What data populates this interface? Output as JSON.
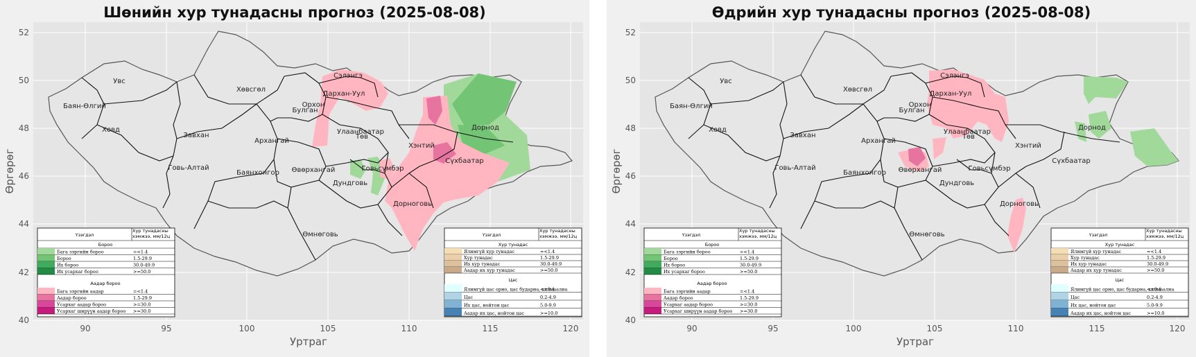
{
  "colors": {
    "bg": "#f0f0f0",
    "plot_bg": "#e5e5e5",
    "grid": "#ffffff",
    "border_outline": "#555555",
    "province_border": "#111111",
    "land": "#e6e6e6",
    "rain_light": "#a1d99b",
    "rain": "#74c476",
    "rain_heavy": "#41ab5d",
    "rain_very_heavy": "#238b45",
    "storm_light": "#ffb6c1",
    "storm": "#e7739f",
    "storm_heavy": "#d9479a",
    "storm_very_heavy": "#c51b7d"
  },
  "panels": [
    {
      "title": "Шөнийн хур тунадасны прогноз (2025-08-08)",
      "xlabel": "Уртраг",
      "ylabel": "Өргөрөг",
      "xticks": [
        "90",
        "95",
        "100",
        "105",
        "110",
        "115",
        "120"
      ],
      "yticks": [
        "40",
        "42",
        "44",
        "46",
        "48",
        "50",
        "52"
      ]
    },
    {
      "title": "Өдрийн хур тунадасны прогноз (2025-08-08)",
      "xlabel": "Уртраг",
      "ylabel": "Өргөрөг",
      "xticks": [
        "90",
        "95",
        "100",
        "105",
        "110",
        "115",
        "120"
      ],
      "yticks": [
        "40",
        "42",
        "44",
        "46",
        "48",
        "50",
        "52"
      ]
    }
  ],
  "aimags": {
    "uvs": "Увс",
    "bayan_ulgii": "Баян-Өлгий",
    "khovd": "Ховд",
    "khuvsgul": "Хөвсгөл",
    "zavkhan": "Завхан",
    "govi_altai": "Говь-Алтай",
    "arkhangai": "Архангай",
    "bayankhongor": "Баянхонгор",
    "uvurkhangai": "Өвөрхангай",
    "bulgan": "Булган",
    "orkhon": "Орхон",
    "selenge": "Сэлэнгэ",
    "darkhan_uul": "Дархан-Уул",
    "ulaanbaatar": "Улаанбаатар",
    "tuv": "Төв",
    "dornod": "Дорнод",
    "khentii": "Хэнтий",
    "sukhbaatar": "Сүхбаатар",
    "dundgovi": "Дундговь",
    "govisumber": "Говьсүмбэр",
    "dornogovi": "Дорноговь",
    "umnugovi": "Өмнөговь"
  },
  "legend_left": {
    "col_phenomenon": "Үзэгдэл",
    "col_amount": "Хур тунадасны хэмжээ, мм/12ц",
    "section_rain": "Бороо",
    "rain_rows": [
      {
        "label": "Бага зэргийн бороо",
        "value": "=<1.4",
        "color": "#a1d99b"
      },
      {
        "label": "Бороо",
        "value": "1.5-29.9",
        "color": "#74c476"
      },
      {
        "label": "Их бороо",
        "value": "30.0-49.9",
        "color": "#41ab5d"
      },
      {
        "label": "Их усархаг бороо",
        "value": ">=50.0",
        "color": "#238b45"
      }
    ],
    "section_storm": "Аадар бороо",
    "storm_rows": [
      {
        "label": "Бага зэргийн аадар",
        "value": "=<1.4",
        "color": "#ffb6c1"
      },
      {
        "label": "Аадар бороо",
        "value": "1.5-29.9",
        "color": "#e7739f"
      },
      {
        "label": "Усархаг аадар бороо",
        "value": ">=30.0",
        "color": "#d9479a"
      },
      {
        "label": "Усархаг ширүүн аадар бороо",
        "value": ">=30.0",
        "color": "#c51b7d"
      }
    ]
  },
  "legend_right": {
    "col_phenomenon": "Үзэгдэл",
    "col_amount": "Хур тунадасны хэмжээ, мм/12ц",
    "section_mixed": "Хур тунадас",
    "mixed_rows": [
      {
        "label": "Ялимгүй хур тунадас",
        "value": "=<1.4",
        "color": "#f5deb3"
      },
      {
        "label": "Хур тунадас",
        "value": "1.5-29.9",
        "color": "#ead0aa"
      },
      {
        "label": "Их хур тунадас",
        "value": "30.0-49.9",
        "color": "#dcc19f"
      },
      {
        "label": "Аадар их хур тунадас",
        "value": ">=50.0",
        "color": "#c8a98a"
      }
    ],
    "section_snow": "Цас",
    "snow_rows": [
      {
        "label": "Ялимгүй цас орно, цас бударна, хялмаална",
        "value": "<=0.1",
        "color": "#e0ffff"
      },
      {
        "label": "Цас",
        "value": "0.2-4.9",
        "color": "#b0d4e6"
      },
      {
        "label": "Их цас, нойтон цас",
        "value": "5.0-9.9",
        "color": "#7fb2d3"
      },
      {
        "label": "Аадар их цас, нойтон цас",
        "value": ">=10.0",
        "color": "#4682b4"
      }
    ]
  }
}
